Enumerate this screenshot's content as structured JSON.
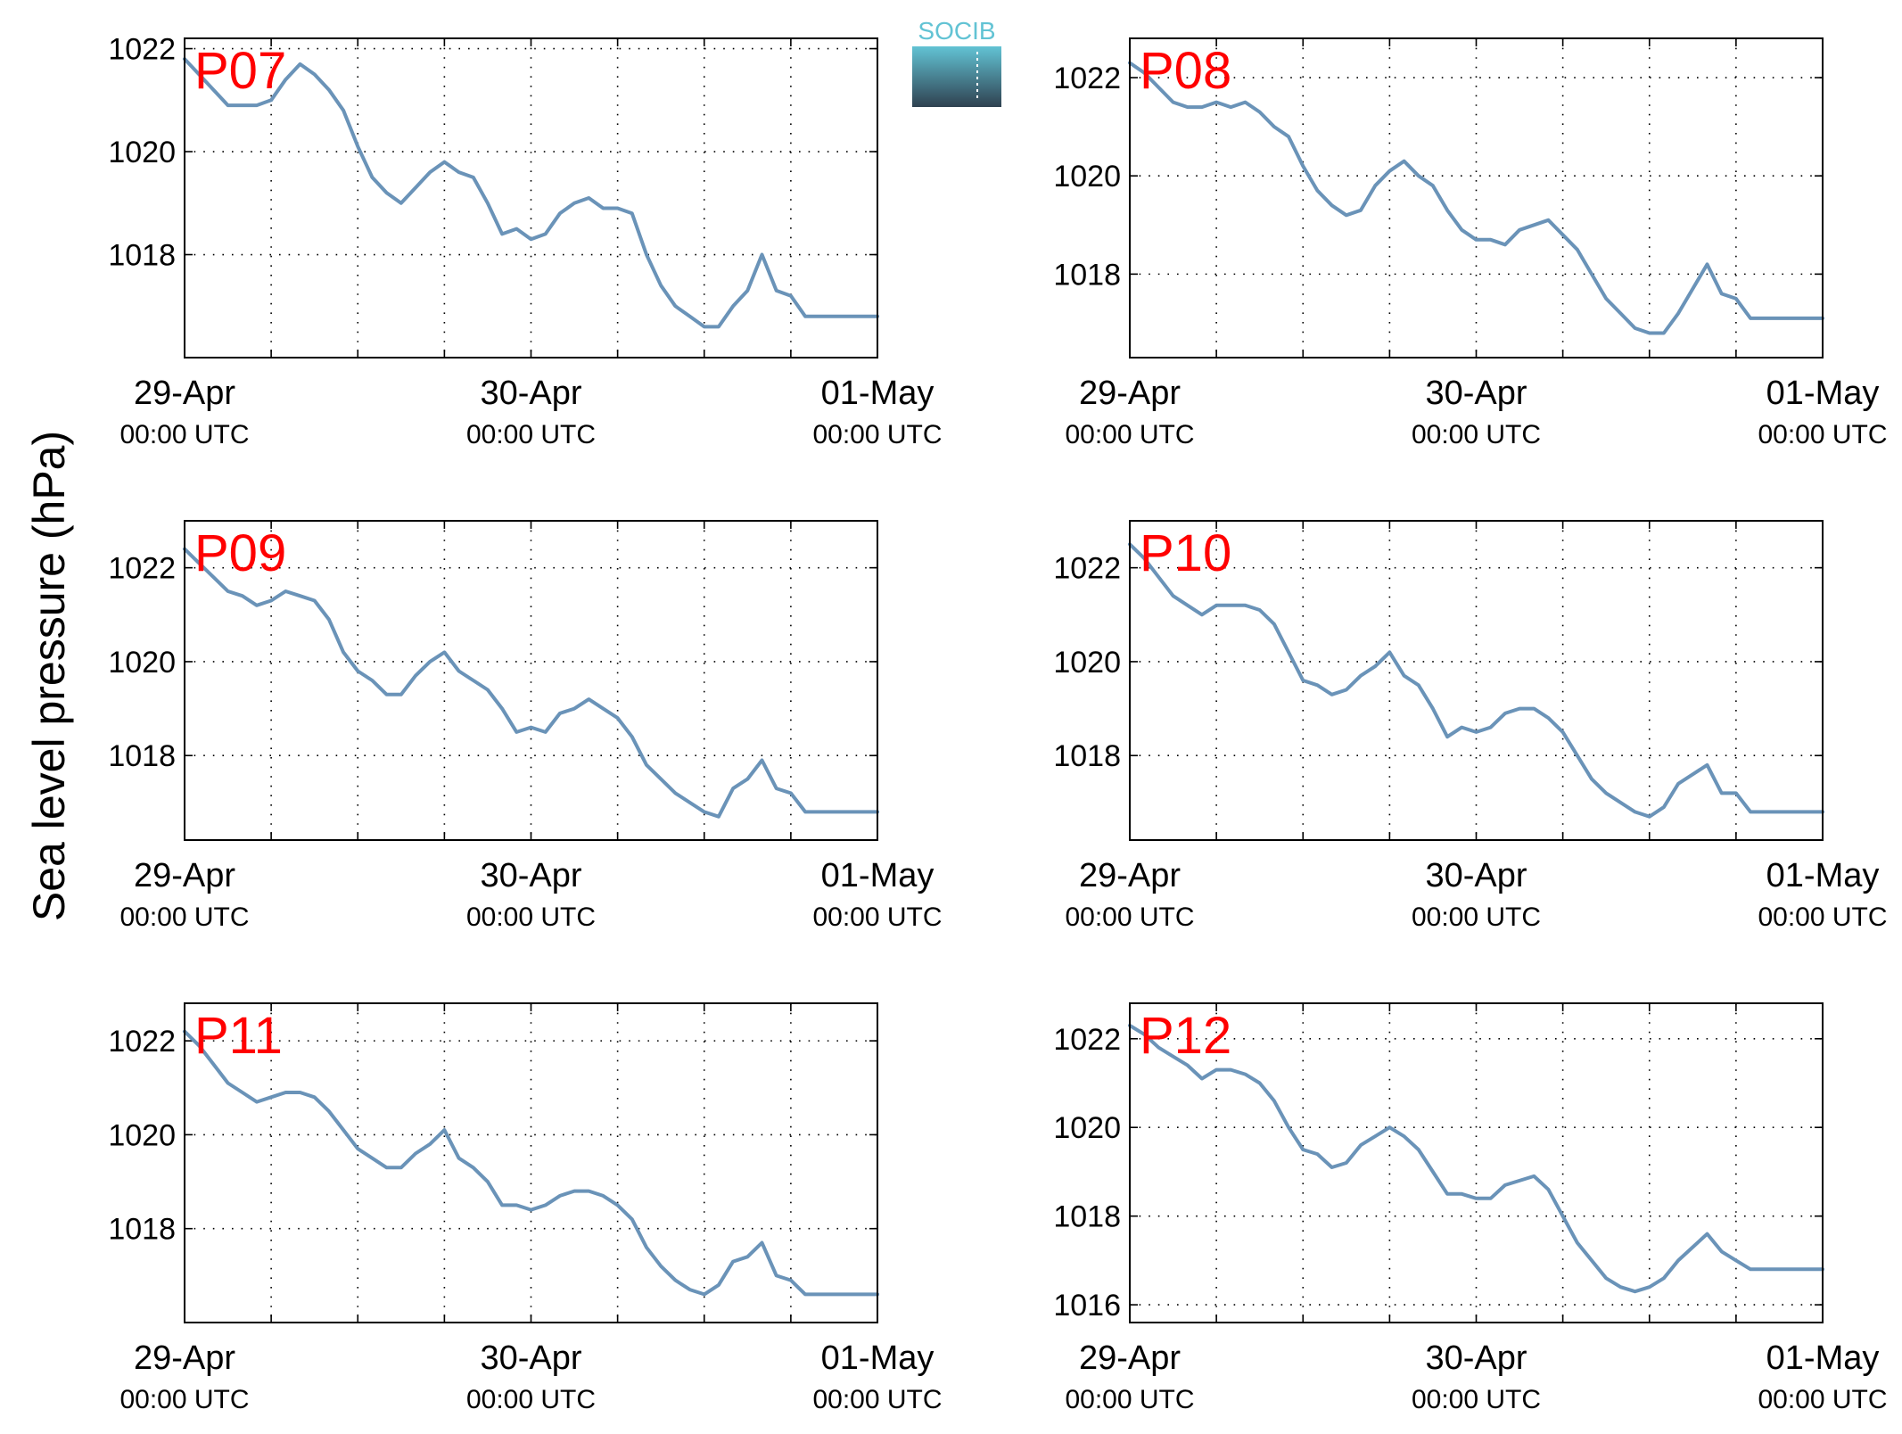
{
  "figure": {
    "ylabel": "Sea level pressure (hPa)",
    "logo_text": "SOCIB"
  },
  "colors": {
    "line": "#6a93b8",
    "panel_label": "#ff0000",
    "axis": "#000000",
    "grid": "#000000",
    "logo_top": "#62c3d4",
    "logo_bottom": "#2f4150"
  },
  "chart_data": [
    {
      "type": "line",
      "label": "P07",
      "grid": true,
      "xlim": [
        0,
        48
      ],
      "ylim": [
        1016.0,
        1022.2
      ],
      "yticks": [
        1018,
        1020,
        1022
      ],
      "xticks": [
        {
          "t": 0,
          "date": "29-Apr",
          "time": "00:00 UTC"
        },
        {
          "t": 24,
          "date": "30-Apr",
          "time": "00:00 UTC"
        },
        {
          "t": 48,
          "date": "01-May",
          "time": "00:00 UTC"
        }
      ],
      "series": [
        {
          "x": [
            0,
            1,
            2,
            3,
            4,
            5,
            6,
            7,
            8,
            9,
            10,
            11,
            12,
            13,
            14,
            15,
            16,
            17,
            18,
            19,
            20,
            21,
            22,
            23,
            24,
            25,
            26,
            27,
            28,
            29,
            30,
            31,
            32,
            33,
            34,
            35,
            36,
            37,
            38,
            39,
            40,
            41,
            42,
            43,
            44,
            45,
            46,
            47,
            48
          ],
          "y": [
            1021.8,
            1021.5,
            1021.2,
            1020.9,
            1020.9,
            1020.9,
            1021.0,
            1021.4,
            1021.7,
            1021.5,
            1021.2,
            1020.8,
            1020.1,
            1019.5,
            1019.2,
            1019.0,
            1019.3,
            1019.6,
            1019.8,
            1019.6,
            1019.5,
            1019.0,
            1018.4,
            1018.5,
            1018.3,
            1018.4,
            1018.8,
            1019.0,
            1019.1,
            1018.9,
            1018.9,
            1018.8,
            1018.0,
            1017.4,
            1017.0,
            1016.8,
            1016.6,
            1016.6,
            1017.0,
            1017.3,
            1018.0,
            1017.3,
            1017.2,
            1016.8,
            1016.8,
            1016.8,
            1016.8,
            1016.8,
            1016.8
          ]
        }
      ]
    },
    {
      "type": "line",
      "label": "P08",
      "grid": true,
      "xlim": [
        0,
        48
      ],
      "ylim": [
        1016.3,
        1022.8
      ],
      "yticks": [
        1018,
        1020,
        1022
      ],
      "xticks": [
        {
          "t": 0,
          "date": "29-Apr",
          "time": "00:00 UTC"
        },
        {
          "t": 24,
          "date": "30-Apr",
          "time": "00:00 UTC"
        },
        {
          "t": 48,
          "date": "01-May",
          "time": "00:00 UTC"
        }
      ],
      "series": [
        {
          "x": [
            0,
            1,
            2,
            3,
            4,
            5,
            6,
            7,
            8,
            9,
            10,
            11,
            12,
            13,
            14,
            15,
            16,
            17,
            18,
            19,
            20,
            21,
            22,
            23,
            24,
            25,
            26,
            27,
            28,
            29,
            30,
            31,
            32,
            33,
            34,
            35,
            36,
            37,
            38,
            39,
            40,
            41,
            42,
            43,
            44,
            45,
            46,
            47,
            48
          ],
          "y": [
            1022.3,
            1022.1,
            1021.8,
            1021.5,
            1021.4,
            1021.4,
            1021.5,
            1021.4,
            1021.5,
            1021.3,
            1021.0,
            1020.8,
            1020.2,
            1019.7,
            1019.4,
            1019.2,
            1019.3,
            1019.8,
            1020.1,
            1020.3,
            1020.0,
            1019.8,
            1019.3,
            1018.9,
            1018.7,
            1018.7,
            1018.6,
            1018.9,
            1019.0,
            1019.1,
            1018.8,
            1018.5,
            1018.0,
            1017.5,
            1017.2,
            1016.9,
            1016.8,
            1016.8,
            1017.2,
            1017.7,
            1018.2,
            1017.6,
            1017.5,
            1017.1,
            1017.1,
            1017.1,
            1017.1,
            1017.1,
            1017.1
          ]
        }
      ]
    },
    {
      "type": "line",
      "label": "P09",
      "grid": true,
      "xlim": [
        0,
        48
      ],
      "ylim": [
        1016.2,
        1023.0
      ],
      "yticks": [
        1018,
        1020,
        1022
      ],
      "xticks": [
        {
          "t": 0,
          "date": "29-Apr",
          "time": "00:00 UTC"
        },
        {
          "t": 24,
          "date": "30-Apr",
          "time": "00:00 UTC"
        },
        {
          "t": 48,
          "date": "01-May",
          "time": "00:00 UTC"
        }
      ],
      "series": [
        {
          "x": [
            0,
            1,
            2,
            3,
            4,
            5,
            6,
            7,
            8,
            9,
            10,
            11,
            12,
            13,
            14,
            15,
            16,
            17,
            18,
            19,
            20,
            21,
            22,
            23,
            24,
            25,
            26,
            27,
            28,
            29,
            30,
            31,
            32,
            33,
            34,
            35,
            36,
            37,
            38,
            39,
            40,
            41,
            42,
            43,
            44,
            45,
            46,
            47,
            48
          ],
          "y": [
            1022.4,
            1022.1,
            1021.8,
            1021.5,
            1021.4,
            1021.2,
            1021.3,
            1021.5,
            1021.4,
            1021.3,
            1020.9,
            1020.2,
            1019.8,
            1019.6,
            1019.3,
            1019.3,
            1019.7,
            1020.0,
            1020.2,
            1019.8,
            1019.6,
            1019.4,
            1019.0,
            1018.5,
            1018.6,
            1018.5,
            1018.9,
            1019.0,
            1019.2,
            1019.0,
            1018.8,
            1018.4,
            1017.8,
            1017.5,
            1017.2,
            1017.0,
            1016.8,
            1016.7,
            1017.3,
            1017.5,
            1017.9,
            1017.3,
            1017.2,
            1016.8,
            1016.8,
            1016.8,
            1016.8,
            1016.8,
            1016.8
          ]
        }
      ]
    },
    {
      "type": "line",
      "label": "P10",
      "grid": true,
      "xlim": [
        0,
        48
      ],
      "ylim": [
        1016.2,
        1023.0
      ],
      "yticks": [
        1018,
        1020,
        1022
      ],
      "xticks": [
        {
          "t": 0,
          "date": "29-Apr",
          "time": "00:00 UTC"
        },
        {
          "t": 24,
          "date": "30-Apr",
          "time": "00:00 UTC"
        },
        {
          "t": 48,
          "date": "01-May",
          "time": "00:00 UTC"
        }
      ],
      "series": [
        {
          "x": [
            0,
            1,
            2,
            3,
            4,
            5,
            6,
            7,
            8,
            9,
            10,
            11,
            12,
            13,
            14,
            15,
            16,
            17,
            18,
            19,
            20,
            21,
            22,
            23,
            24,
            25,
            26,
            27,
            28,
            29,
            30,
            31,
            32,
            33,
            34,
            35,
            36,
            37,
            38,
            39,
            40,
            41,
            42,
            43,
            44,
            45,
            46,
            47,
            48
          ],
          "y": [
            1022.5,
            1022.2,
            1021.8,
            1021.4,
            1021.2,
            1021.0,
            1021.2,
            1021.2,
            1021.2,
            1021.1,
            1020.8,
            1020.2,
            1019.6,
            1019.5,
            1019.3,
            1019.4,
            1019.7,
            1019.9,
            1020.2,
            1019.7,
            1019.5,
            1019.0,
            1018.4,
            1018.6,
            1018.5,
            1018.6,
            1018.9,
            1019.0,
            1019.0,
            1018.8,
            1018.5,
            1018.0,
            1017.5,
            1017.2,
            1017.0,
            1016.8,
            1016.7,
            1016.9,
            1017.4,
            1017.6,
            1017.8,
            1017.2,
            1017.2,
            1016.8,
            1016.8,
            1016.8,
            1016.8,
            1016.8,
            1016.8
          ]
        }
      ]
    },
    {
      "type": "line",
      "label": "P11",
      "grid": true,
      "xlim": [
        0,
        48
      ],
      "ylim": [
        1016.0,
        1022.8
      ],
      "yticks": [
        1018,
        1020,
        1022
      ],
      "xticks": [
        {
          "t": 0,
          "date": "29-Apr",
          "time": "00:00 UTC"
        },
        {
          "t": 24,
          "date": "30-Apr",
          "time": "00:00 UTC"
        },
        {
          "t": 48,
          "date": "01-May",
          "time": "00:00 UTC"
        }
      ],
      "series": [
        {
          "x": [
            0,
            1,
            2,
            3,
            4,
            5,
            6,
            7,
            8,
            9,
            10,
            11,
            12,
            13,
            14,
            15,
            16,
            17,
            18,
            19,
            20,
            21,
            22,
            23,
            24,
            25,
            26,
            27,
            28,
            29,
            30,
            31,
            32,
            33,
            34,
            35,
            36,
            37,
            38,
            39,
            40,
            41,
            42,
            43,
            44,
            45,
            46,
            47,
            48
          ],
          "y": [
            1022.2,
            1021.9,
            1021.5,
            1021.1,
            1020.9,
            1020.7,
            1020.8,
            1020.9,
            1020.9,
            1020.8,
            1020.5,
            1020.1,
            1019.7,
            1019.5,
            1019.3,
            1019.3,
            1019.6,
            1019.8,
            1020.1,
            1019.5,
            1019.3,
            1019.0,
            1018.5,
            1018.5,
            1018.4,
            1018.5,
            1018.7,
            1018.8,
            1018.8,
            1018.7,
            1018.5,
            1018.2,
            1017.6,
            1017.2,
            1016.9,
            1016.7,
            1016.6,
            1016.8,
            1017.3,
            1017.4,
            1017.7,
            1017.0,
            1016.9,
            1016.6,
            1016.6,
            1016.6,
            1016.6,
            1016.6,
            1016.6
          ]
        }
      ]
    },
    {
      "type": "line",
      "label": "P12",
      "grid": true,
      "xlim": [
        0,
        48
      ],
      "ylim": [
        1015.6,
        1022.8
      ],
      "yticks": [
        1016,
        1018,
        1020,
        1022
      ],
      "xticks": [
        {
          "t": 0,
          "date": "29-Apr",
          "time": "00:00 UTC"
        },
        {
          "t": 24,
          "date": "30-Apr",
          "time": "00:00 UTC"
        },
        {
          "t": 48,
          "date": "01-May",
          "time": "00:00 UTC"
        }
      ],
      "series": [
        {
          "x": [
            0,
            1,
            2,
            3,
            4,
            5,
            6,
            7,
            8,
            9,
            10,
            11,
            12,
            13,
            14,
            15,
            16,
            17,
            18,
            19,
            20,
            21,
            22,
            23,
            24,
            25,
            26,
            27,
            28,
            29,
            30,
            31,
            32,
            33,
            34,
            35,
            36,
            37,
            38,
            39,
            40,
            41,
            42,
            43,
            44,
            45,
            46,
            47,
            48
          ],
          "y": [
            1022.3,
            1022.1,
            1021.8,
            1021.6,
            1021.4,
            1021.1,
            1021.3,
            1021.3,
            1021.2,
            1021.0,
            1020.6,
            1020.0,
            1019.5,
            1019.4,
            1019.1,
            1019.2,
            1019.6,
            1019.8,
            1020.0,
            1019.8,
            1019.5,
            1019.0,
            1018.5,
            1018.5,
            1018.4,
            1018.4,
            1018.7,
            1018.8,
            1018.9,
            1018.6,
            1018.0,
            1017.4,
            1017.0,
            1016.6,
            1016.4,
            1016.3,
            1016.4,
            1016.6,
            1017.0,
            1017.3,
            1017.6,
            1017.2,
            1017.0,
            1016.8,
            1016.8,
            1016.8,
            1016.8,
            1016.8,
            1016.8
          ]
        }
      ]
    }
  ]
}
